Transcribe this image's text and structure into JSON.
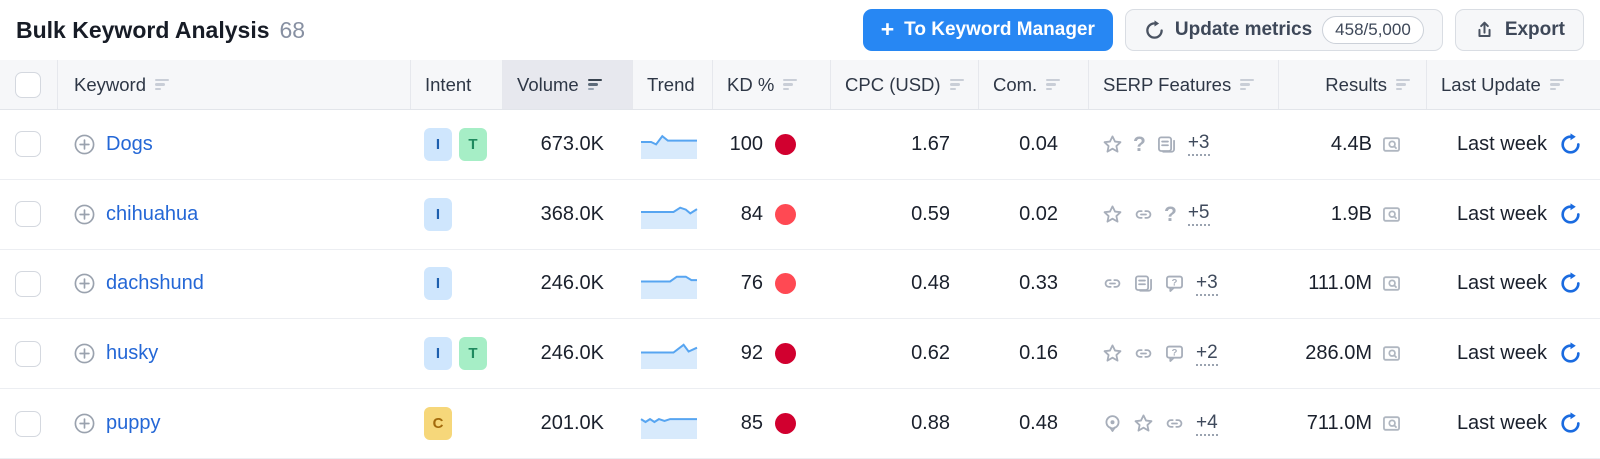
{
  "header": {
    "title": "Bulk Keyword Analysis",
    "count": "68",
    "to_keyword_manager_label": "To Keyword Manager",
    "plus_glyph": "+",
    "update_metrics_label": "Update metrics",
    "update_metrics_quota": "458/5,000",
    "export_label": "Export"
  },
  "colors": {
    "primary_button": "#2787f3",
    "link_blue": "#2467d6",
    "kd_red_dark": "#d1002f",
    "kd_red_light": "#ff4953",
    "refresh_blue": "#1a6be0",
    "trend_line": "#57a5f1",
    "trend_fill": "#d8eafc",
    "intent_i_bg": "#cfe6fd",
    "intent_i_fg": "#1d5fae",
    "intent_t_bg": "#a6eec6",
    "intent_t_fg": "#1f8a5f",
    "intent_c_bg": "#f6d77a",
    "intent_c_fg": "#a36a0c"
  },
  "table": {
    "columns": [
      {
        "label": "Keyword",
        "slug": "keyword",
        "sort": true,
        "active": false
      },
      {
        "label": "Intent",
        "slug": "intent",
        "sort": false,
        "active": false
      },
      {
        "label": "Volume",
        "slug": "volume",
        "sort": true,
        "active": true
      },
      {
        "label": "Trend",
        "slug": "trend",
        "sort": false,
        "active": false
      },
      {
        "label": "KD %",
        "slug": "kd",
        "sort": true,
        "active": false
      },
      {
        "label": "CPC (USD)",
        "slug": "cpc",
        "sort": true,
        "active": false
      },
      {
        "label": "Com.",
        "slug": "com",
        "sort": true,
        "active": false
      },
      {
        "label": "SERP Features",
        "slug": "serp",
        "sort": true,
        "active": false
      },
      {
        "label": "Results",
        "slug": "results",
        "sort": true,
        "active": false
      },
      {
        "label": "Last Update",
        "slug": "update",
        "sort": true,
        "active": false
      }
    ],
    "rows": [
      {
        "keyword": "Dogs",
        "intents": [
          {
            "label": "I",
            "bg": "#cfe6fd",
            "fg": "#1d5fae"
          },
          {
            "label": "T",
            "bg": "#a6eec6",
            "fg": "#1f8a5f"
          }
        ],
        "volume": "673.0K",
        "trend": [
          [
            0,
            0.5
          ],
          [
            18,
            0.5
          ],
          [
            27,
            0.4
          ],
          [
            38,
            0.74
          ],
          [
            48,
            0.56
          ],
          [
            100,
            0.56
          ]
        ],
        "kd": "100",
        "kd_color": "#d1002f",
        "cpc": "1.67",
        "com": "0.04",
        "serp_icons": [
          "star-icon",
          "question-icon",
          "list-icon"
        ],
        "serp_more": "+3",
        "results": "4.4B",
        "last_update": "Last week"
      },
      {
        "keyword": "chihuahua",
        "intents": [
          {
            "label": "I",
            "bg": "#cfe6fd",
            "fg": "#1d5fae"
          }
        ],
        "volume": "368.0K",
        "trend": [
          [
            0,
            0.5
          ],
          [
            58,
            0.5
          ],
          [
            70,
            0.68
          ],
          [
            80,
            0.6
          ],
          [
            88,
            0.44
          ],
          [
            100,
            0.62
          ]
        ],
        "kd": "84",
        "kd_color": "#ff4953",
        "cpc": "0.59",
        "com": "0.02",
        "serp_icons": [
          "star-icon",
          "link-icon",
          "question-icon"
        ],
        "serp_more": "+5",
        "results": "1.9B",
        "last_update": "Last week"
      },
      {
        "keyword": "dachshund",
        "intents": [
          {
            "label": "I",
            "bg": "#cfe6fd",
            "fg": "#1d5fae"
          }
        ],
        "volume": "246.0K",
        "trend": [
          [
            0,
            0.52
          ],
          [
            52,
            0.52
          ],
          [
            64,
            0.72
          ],
          [
            80,
            0.72
          ],
          [
            90,
            0.58
          ],
          [
            100,
            0.58
          ]
        ],
        "kd": "76",
        "kd_color": "#ff4953",
        "cpc": "0.48",
        "com": "0.33",
        "serp_icons": [
          "link-icon",
          "list-icon",
          "faq-icon"
        ],
        "serp_more": "+3",
        "results": "111.0M",
        "last_update": "Last week"
      },
      {
        "keyword": "husky",
        "intents": [
          {
            "label": "I",
            "bg": "#cfe6fd",
            "fg": "#1d5fae"
          },
          {
            "label": "T",
            "bg": "#a6eec6",
            "fg": "#1f8a5f"
          }
        ],
        "volume": "246.0K",
        "trend": [
          [
            0,
            0.48
          ],
          [
            58,
            0.48
          ],
          [
            76,
            0.8
          ],
          [
            85,
            0.52
          ],
          [
            100,
            0.68
          ]
        ],
        "kd": "92",
        "kd_color": "#d1002f",
        "cpc": "0.62",
        "com": "0.16",
        "serp_icons": [
          "star-icon",
          "link-icon",
          "faq-icon"
        ],
        "serp_more": "+2",
        "results": "286.0M",
        "last_update": "Last week"
      },
      {
        "keyword": "puppy",
        "intents": [
          {
            "label": "C",
            "bg": "#f6d77a",
            "fg": "#a36a0c"
          }
        ],
        "volume": "201.0K",
        "trend": [
          [
            0,
            0.62
          ],
          [
            8,
            0.5
          ],
          [
            16,
            0.62
          ],
          [
            24,
            0.5
          ],
          [
            32,
            0.62
          ],
          [
            42,
            0.54
          ],
          [
            52,
            0.62
          ],
          [
            100,
            0.62
          ]
        ],
        "kd": "85",
        "kd_color": "#d1002f",
        "cpc": "0.88",
        "com": "0.48",
        "serp_icons": [
          "pin-icon",
          "star-icon",
          "link-icon"
        ],
        "serp_more": "+4",
        "results": "711.0M",
        "last_update": "Last week"
      }
    ]
  }
}
